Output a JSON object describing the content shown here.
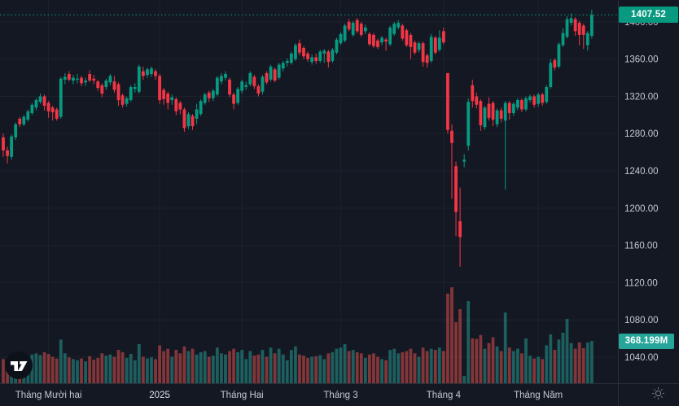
{
  "price_scale": {
    "last_price_label": "1407.52",
    "tick_labels": [
      "1400.00",
      "1360.00",
      "1320.00",
      "1280.00",
      "1240.00",
      "1200.00",
      "1160.00",
      "1120.00",
      "1080.00",
      "1040.00"
    ]
  },
  "volume_scale": {
    "last_volume_label": "368.199M"
  },
  "time_scale": {
    "ticks": [
      {
        "label": "Tháng Mười hai",
        "index": 11,
        "year": false
      },
      {
        "label": "2025",
        "index": 38,
        "year": true
      },
      {
        "label": "Tháng Hai",
        "index": 58,
        "year": false
      },
      {
        "label": "Tháng 3",
        "index": 82,
        "year": false
      },
      {
        "label": "Tháng 4",
        "index": 107,
        "year": false
      },
      {
        "label": "Tháng Năm",
        "index": 130,
        "year": false
      }
    ]
  },
  "icons": {
    "logo": "tradingview-logo",
    "axis_corner": "sun-brightness-icon"
  },
  "colors": {
    "background": "#141823",
    "grid": "#1d212c",
    "up": "#089981",
    "down": "#f23645",
    "volume_up": "rgba(38,166,154,0.5)",
    "volume_down": "rgba(239,83,80,0.5)",
    "axis_text": "#c3c8d1",
    "year_text": "#dde1e8",
    "separator": "#2a2e39",
    "price_badge": "#089981",
    "volume_badge": "#26a69a",
    "dotted_line": "#089981",
    "icon_gray": "#787b86"
  },
  "chart_data": {
    "type": "candlestick",
    "title": "",
    "xlabel": "",
    "ylabel": "",
    "grid": true,
    "legend_position": "none",
    "ylim": [
      1012,
      1423.5
    ],
    "price_grid_ticks": [
      1400,
      1360,
      1320,
      1280,
      1240,
      1200,
      1160,
      1120,
      1080,
      1040
    ],
    "volume_ylim_millions": [
      0,
      850
    ],
    "last_price": 1407.52,
    "last_volume_millions": 368.199,
    "x_tick_indices": [
      11,
      38,
      58,
      82,
      107,
      130
    ],
    "x_tick_labels": [
      "Tháng Mười hai",
      "2025",
      "Tháng Hai",
      "Tháng 3",
      "Tháng 4",
      "Tháng Năm"
    ],
    "ohlcv_note": "each row = [open, high, low, close, volume_millions]; daily candles Nov 2024 - May 2025",
    "ohlcv": [
      [
        1276,
        1280,
        1255,
        1262,
        210
      ],
      [
        1262,
        1266,
        1248,
        1256,
        185
      ],
      [
        1255,
        1279,
        1252,
        1277,
        230
      ],
      [
        1276,
        1292,
        1273,
        1290,
        240
      ],
      [
        1296,
        1298,
        1287,
        1290,
        195
      ],
      [
        1290,
        1300,
        1288,
        1298,
        220
      ],
      [
        1295,
        1306,
        1293,
        1304,
        235
      ],
      [
        1302,
        1313,
        1300,
        1311,
        250
      ],
      [
        1308,
        1318,
        1305,
        1316,
        260
      ],
      [
        1314,
        1323,
        1312,
        1320,
        245
      ],
      [
        1320,
        1322,
        1305,
        1310,
        270
      ],
      [
        1313,
        1315,
        1297,
        1304,
        255
      ],
      [
        1308,
        1310,
        1294,
        1303,
        230
      ],
      [
        1306,
        1308,
        1294,
        1296,
        215
      ],
      [
        1298,
        1341,
        1296,
        1339,
        380
      ],
      [
        1338,
        1345,
        1333,
        1341,
        260
      ],
      [
        1344,
        1347,
        1336,
        1338,
        225
      ],
      [
        1337,
        1343,
        1333,
        1340,
        210
      ],
      [
        1338,
        1344,
        1334,
        1339,
        200
      ],
      [
        1340,
        1342,
        1331,
        1334,
        215
      ],
      [
        1335,
        1340,
        1331,
        1337,
        190
      ],
      [
        1344,
        1348,
        1335,
        1337,
        235
      ],
      [
        1339,
        1343,
        1333,
        1337,
        205
      ],
      [
        1336,
        1338,
        1326,
        1329,
        220
      ],
      [
        1332,
        1334,
        1319,
        1323,
        260
      ],
      [
        1330,
        1339,
        1327,
        1337,
        240
      ],
      [
        1335,
        1344,
        1332,
        1342,
        250
      ],
      [
        1336,
        1342,
        1324,
        1327,
        230
      ],
      [
        1333,
        1335,
        1310,
        1316,
        290
      ],
      [
        1321,
        1323,
        1308,
        1311,
        270
      ],
      [
        1312,
        1320,
        1309,
        1318,
        220
      ],
      [
        1316,
        1332,
        1314,
        1330,
        255
      ],
      [
        1328,
        1334,
        1324,
        1330,
        200
      ],
      [
        1325,
        1354,
        1323,
        1352,
        340
      ],
      [
        1347,
        1352,
        1338,
        1342,
        230
      ],
      [
        1343,
        1351,
        1340,
        1349,
        215
      ],
      [
        1344,
        1352,
        1341,
        1350,
        225
      ],
      [
        1347,
        1349,
        1338,
        1342,
        210
      ],
      [
        1342,
        1344,
        1312,
        1316,
        330
      ],
      [
        1327,
        1329,
        1311,
        1317,
        280
      ],
      [
        1323,
        1325,
        1306,
        1313,
        300
      ],
      [
        1316,
        1322,
        1311,
        1319,
        230
      ],
      [
        1317,
        1319,
        1300,
        1304,
        290
      ],
      [
        1313,
        1315,
        1301,
        1306,
        260
      ],
      [
        1306,
        1308,
        1282,
        1286,
        320
      ],
      [
        1288,
        1303,
        1285,
        1301,
        280
      ],
      [
        1299,
        1301,
        1284,
        1288,
        300
      ],
      [
        1296,
        1312,
        1290,
        1306,
        250
      ],
      [
        1301,
        1317,
        1299,
        1315,
        270
      ],
      [
        1313,
        1324,
        1311,
        1322,
        280
      ],
      [
        1324,
        1326,
        1314,
        1318,
        230
      ],
      [
        1318,
        1328,
        1315,
        1326,
        240
      ],
      [
        1322,
        1342,
        1320,
        1340,
        310
      ],
      [
        1336,
        1345,
        1333,
        1342,
        260
      ],
      [
        1340,
        1347,
        1337,
        1344,
        250
      ],
      [
        1338,
        1340,
        1319,
        1322,
        280
      ],
      [
        1322,
        1324,
        1306,
        1312,
        300
      ],
      [
        1313,
        1330,
        1311,
        1328,
        270
      ],
      [
        1326,
        1338,
        1323,
        1336,
        290
      ],
      [
        1330,
        1336,
        1327,
        1332,
        210
      ],
      [
        1333,
        1347,
        1331,
        1345,
        280
      ],
      [
        1341,
        1343,
        1328,
        1331,
        240
      ],
      [
        1331,
        1333,
        1320,
        1323,
        250
      ],
      [
        1325,
        1343,
        1322,
        1341,
        290
      ],
      [
        1345,
        1347,
        1333,
        1335,
        230
      ],
      [
        1338,
        1354,
        1336,
        1352,
        310
      ],
      [
        1349,
        1351,
        1335,
        1337,
        260
      ],
      [
        1340,
        1356,
        1338,
        1354,
        300
      ],
      [
        1350,
        1358,
        1347,
        1356,
        250
      ],
      [
        1356,
        1361,
        1352,
        1358,
        200
      ],
      [
        1356,
        1368,
        1354,
        1366,
        290
      ],
      [
        1360,
        1377,
        1358,
        1375,
        320
      ],
      [
        1377,
        1381,
        1364,
        1367,
        250
      ],
      [
        1372,
        1374,
        1360,
        1363,
        240
      ],
      [
        1366,
        1368,
        1357,
        1360,
        220
      ],
      [
        1357,
        1365,
        1354,
        1362,
        230
      ],
      [
        1362,
        1366,
        1355,
        1358,
        235
      ],
      [
        1358,
        1370,
        1356,
        1368,
        245
      ],
      [
        1366,
        1371,
        1356,
        1369,
        210
      ],
      [
        1368,
        1370,
        1351,
        1357,
        260
      ],
      [
        1358,
        1372,
        1356,
        1370,
        270
      ],
      [
        1367,
        1383,
        1365,
        1381,
        300
      ],
      [
        1377,
        1389,
        1375,
        1387,
        310
      ],
      [
        1380,
        1398,
        1378,
        1396,
        340
      ],
      [
        1400,
        1403,
        1390,
        1392,
        280
      ],
      [
        1386,
        1401,
        1384,
        1399,
        290
      ],
      [
        1402,
        1404,
        1388,
        1390,
        270
      ],
      [
        1398,
        1400,
        1384,
        1386,
        260
      ],
      [
        1390,
        1397,
        1387,
        1394,
        220
      ],
      [
        1387,
        1389,
        1374,
        1376,
        250
      ],
      [
        1386,
        1388,
        1372,
        1374,
        260
      ],
      [
        1380,
        1382,
        1371,
        1373,
        230
      ],
      [
        1378,
        1385,
        1375,
        1383,
        210
      ],
      [
        1381,
        1383,
        1369,
        1379,
        200
      ],
      [
        1376,
        1396,
        1374,
        1394,
        290
      ],
      [
        1387,
        1400,
        1385,
        1398,
        300
      ],
      [
        1394,
        1402,
        1392,
        1399,
        260
      ],
      [
        1396,
        1398,
        1380,
        1382,
        270
      ],
      [
        1391,
        1393,
        1373,
        1375,
        280
      ],
      [
        1386,
        1388,
        1360,
        1373,
        300
      ],
      [
        1378,
        1380,
        1365,
        1367,
        260
      ],
      [
        1370,
        1379,
        1367,
        1377,
        230
      ],
      [
        1377,
        1379,
        1352,
        1357,
        310
      ],
      [
        1364,
        1366,
        1351,
        1356,
        280
      ],
      [
        1358,
        1387,
        1356,
        1384,
        300
      ],
      [
        1383,
        1385,
        1365,
        1367,
        290
      ],
      [
        1370,
        1391,
        1368,
        1383,
        310
      ],
      [
        1390,
        1394,
        1376,
        1378,
        280
      ],
      [
        1345,
        1345,
        1280,
        1284,
        780
      ],
      [
        1283,
        1290,
        1210,
        1270,
        835
      ],
      [
        1245,
        1250,
        1170,
        1196,
        531
      ],
      [
        1186,
        1222,
        1137,
        1169,
        645
      ],
      [
        1250,
        1258,
        1244,
        1252,
        64
      ],
      [
        1267,
        1318,
        1262,
        1314,
        715
      ],
      [
        1332,
        1338,
        1308,
        1315,
        390
      ],
      [
        1320,
        1324,
        1307,
        1311,
        385
      ],
      [
        1315,
        1317,
        1283,
        1289,
        420
      ],
      [
        1287,
        1310,
        1284,
        1308,
        300
      ],
      [
        1312,
        1319,
        1294,
        1297,
        350
      ],
      [
        1313,
        1315,
        1288,
        1295,
        400
      ],
      [
        1290,
        1307,
        1287,
        1305,
        320
      ],
      [
        1305,
        1308,
        1292,
        1296,
        280
      ],
      [
        1294,
        1315,
        1220,
        1313,
        615
      ],
      [
        1313,
        1315,
        1295,
        1302,
        310
      ],
      [
        1302,
        1314,
        1299,
        1312,
        280
      ],
      [
        1308,
        1318,
        1305,
        1316,
        300
      ],
      [
        1316,
        1318,
        1303,
        1306,
        260
      ],
      [
        1306,
        1320,
        1304,
        1318,
        390
      ],
      [
        1316,
        1322,
        1313,
        1320,
        240
      ],
      [
        1320,
        1322,
        1308,
        1311,
        215
      ],
      [
        1312,
        1324,
        1309,
        1322,
        230
      ],
      [
        1322,
        1324,
        1310,
        1313,
        210
      ],
      [
        1314,
        1332,
        1312,
        1330,
        330
      ],
      [
        1330,
        1360,
        1328,
        1356,
        425
      ],
      [
        1359,
        1361,
        1348,
        1351,
        290
      ],
      [
        1352,
        1378,
        1350,
        1376,
        380
      ],
      [
        1375,
        1393,
        1373,
        1388,
        440
      ],
      [
        1384,
        1406,
        1382,
        1403,
        560
      ],
      [
        1399,
        1409,
        1396,
        1404,
        350
      ],
      [
        1403,
        1405,
        1385,
        1390,
        300
      ],
      [
        1399,
        1401,
        1375,
        1386,
        355
      ],
      [
        1396,
        1398,
        1371,
        1386,
        305
      ],
      [
        1375,
        1390,
        1369,
        1388,
        355
      ],
      [
        1385,
        1413,
        1382,
        1407.52,
        368.199
      ]
    ]
  }
}
